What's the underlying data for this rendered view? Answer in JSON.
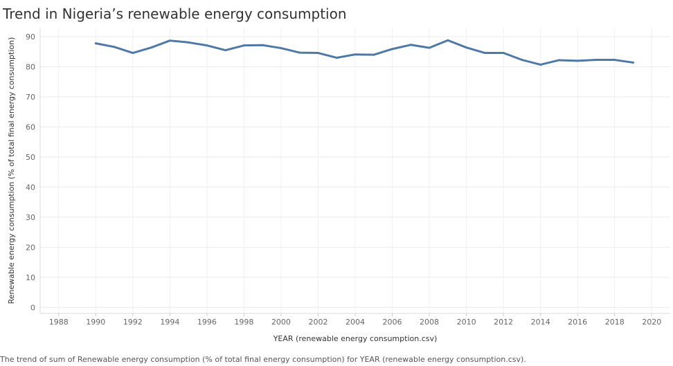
{
  "title": "Trend in Nigeria’s renewable energy consumption",
  "footer": "The trend of sum of Renewable energy consumption (% of total final energy consumption) for YEAR (renewable energy consumption.csv).",
  "chart_data": {
    "type": "line",
    "title": "Trend in Nigeria’s renewable energy consumption",
    "xlabel": "YEAR (renewable energy consumption.csv)",
    "ylabel": "Renewable energy consumption (% of total final energy consumption)",
    "xlim": [
      1987,
      2021
    ],
    "ylim": [
      -2,
      93
    ],
    "xticks": [
      1988,
      1990,
      1992,
      1994,
      1996,
      1998,
      2000,
      2002,
      2004,
      2006,
      2008,
      2010,
      2012,
      2014,
      2016,
      2018,
      2020
    ],
    "yticks": [
      0,
      10,
      20,
      30,
      40,
      50,
      60,
      70,
      80,
      90
    ],
    "grid": true,
    "color": "#4e79a7",
    "series": [
      {
        "x": [
          1990,
          1991,
          1992,
          1993,
          1994,
          1995,
          1996,
          1997,
          1998,
          1999,
          2000,
          2001,
          2002,
          2003,
          2004,
          2005,
          2006,
          2007,
          2008,
          2009,
          2010,
          2011,
          2012,
          2013,
          2014,
          2015,
          2016,
          2017,
          2018,
          2019
        ],
        "values": [
          87.8,
          86.6,
          84.6,
          86.4,
          88.7,
          88.1,
          87.1,
          85.5,
          87.1,
          87.2,
          86.2,
          84.7,
          84.6,
          83.0,
          84.1,
          84.0,
          85.9,
          87.3,
          86.3,
          88.8,
          86.4,
          84.6,
          84.6,
          82.3,
          80.7,
          82.2,
          82.0,
          82.3,
          82.3,
          81.4
        ]
      }
    ]
  }
}
